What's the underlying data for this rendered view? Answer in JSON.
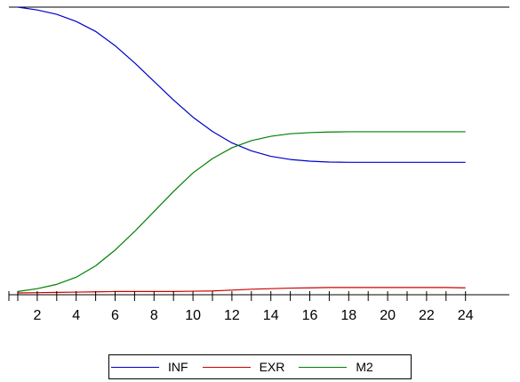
{
  "chart_data": {
    "type": "line",
    "x": [
      1,
      2,
      3,
      4,
      5,
      6,
      7,
      8,
      9,
      10,
      11,
      12,
      13,
      14,
      15,
      16,
      17,
      18,
      19,
      20,
      21,
      22,
      23,
      24
    ],
    "xticks": [
      2,
      4,
      6,
      8,
      10,
      12,
      14,
      16,
      18,
      20,
      22,
      24
    ],
    "xlim": [
      1,
      24
    ],
    "ylim": [
      0,
      1
    ],
    "grid": false,
    "legend_position": "bottom",
    "series": [
      {
        "name": "INF",
        "color": "#0000cc",
        "values": [
          1.0,
          0.99,
          0.975,
          0.95,
          0.915,
          0.865,
          0.805,
          0.74,
          0.675,
          0.615,
          0.565,
          0.525,
          0.497,
          0.478,
          0.467,
          0.461,
          0.458,
          0.457,
          0.457,
          0.457,
          0.457,
          0.457,
          0.457,
          0.457
        ]
      },
      {
        "name": "EXR",
        "color": "#cc0000",
        "values": [
          0.0,
          0.001,
          0.002,
          0.003,
          0.004,
          0.005,
          0.005,
          0.005,
          0.005,
          0.006,
          0.007,
          0.01,
          0.013,
          0.015,
          0.017,
          0.018,
          0.019,
          0.019,
          0.019,
          0.019,
          0.019,
          0.019,
          0.019,
          0.018
        ]
      },
      {
        "name": "M2",
        "color": "#008000",
        "values": [
          0.005,
          0.015,
          0.03,
          0.055,
          0.095,
          0.15,
          0.215,
          0.285,
          0.355,
          0.42,
          0.47,
          0.508,
          0.533,
          0.548,
          0.557,
          0.561,
          0.563,
          0.564,
          0.564,
          0.564,
          0.564,
          0.564,
          0.564,
          0.564
        ]
      }
    ]
  }
}
